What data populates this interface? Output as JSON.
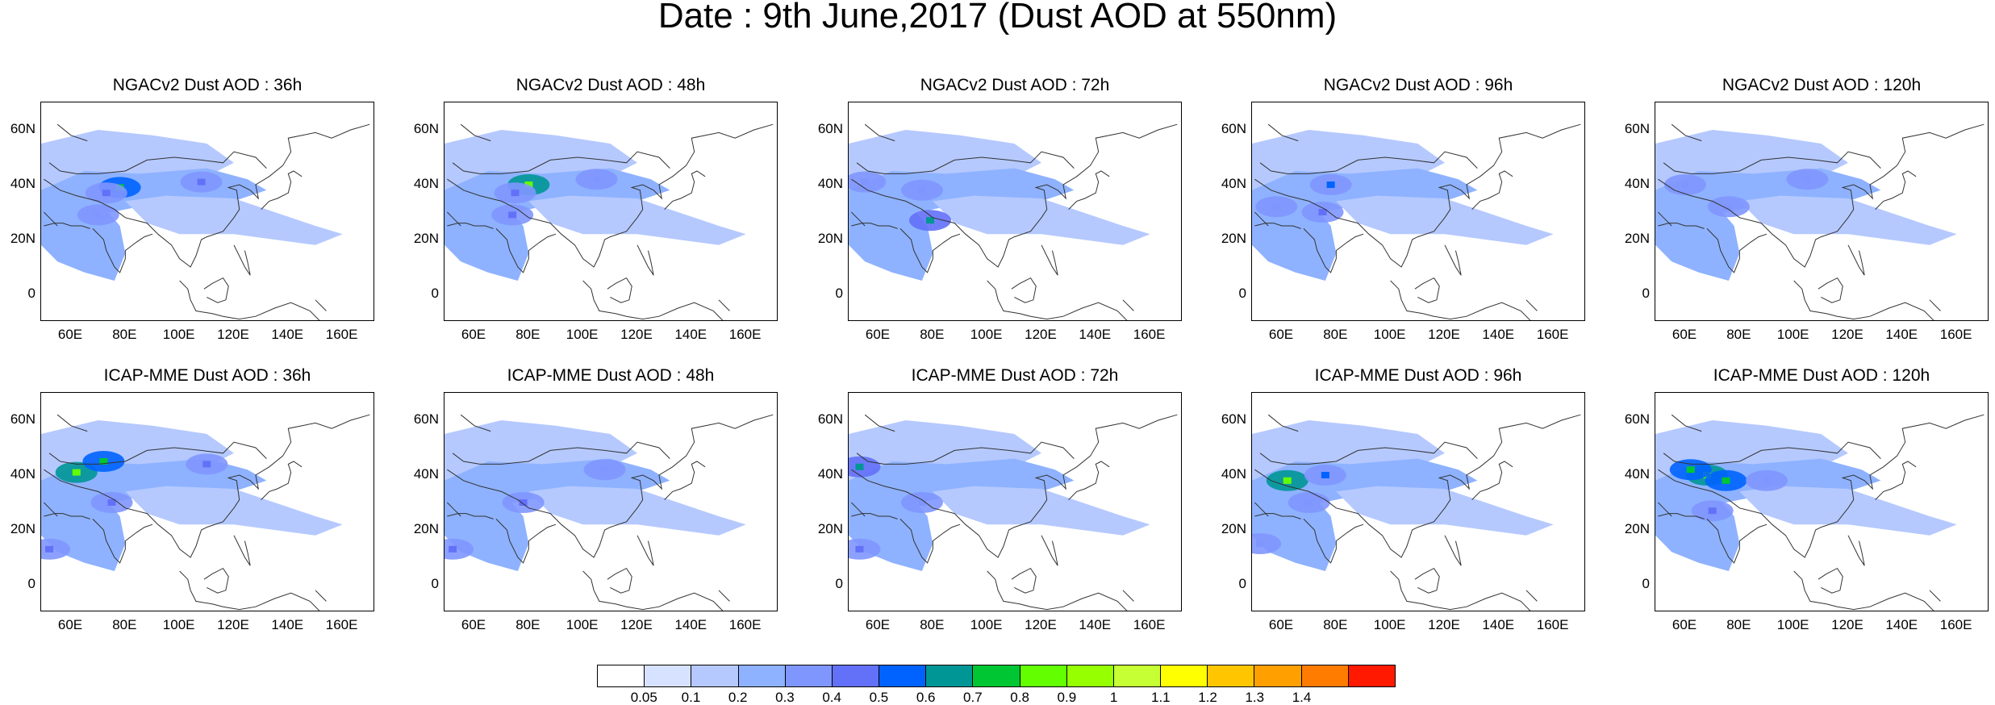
{
  "title": "Date : 9th June,2017 (Dust AOD at 550nm)",
  "rows": [
    {
      "model": "NGACv2",
      "panels": [
        {
          "title": "NGACv2 Dust AOD : 36h",
          "hotspots": [
            {
              "lon": 78,
              "lat": 39,
              "level": 0.7
            },
            {
              "lon": 73,
              "lat": 37,
              "level": 0.4
            },
            {
              "lon": 108,
              "lat": 41,
              "level": 0.4
            },
            {
              "lon": 70,
              "lat": 29,
              "level": 0.35
            }
          ]
        },
        {
          "title": "NGACv2 Dust AOD : 48h",
          "hotspots": [
            {
              "lon": 80,
              "lat": 40,
              "level": 0.8
            },
            {
              "lon": 75,
              "lat": 37,
              "level": 0.45
            },
            {
              "lon": 74,
              "lat": 29,
              "level": 0.4
            },
            {
              "lon": 105,
              "lat": 42,
              "level": 0.35
            }
          ]
        },
        {
          "title": "NGACv2 Dust AOD : 72h",
          "hotspots": [
            {
              "lon": 79,
              "lat": 27,
              "level": 0.6
            },
            {
              "lon": 55,
              "lat": 41,
              "level": 0.35
            },
            {
              "lon": 76,
              "lat": 38,
              "level": 0.35
            }
          ]
        },
        {
          "title": "NGACv2 Dust AOD : 96h",
          "hotspots": [
            {
              "lon": 78,
              "lat": 40,
              "level": 0.5
            },
            {
              "lon": 75,
              "lat": 30,
              "level": 0.4
            },
            {
              "lon": 58,
              "lat": 32,
              "level": 0.35
            }
          ]
        },
        {
          "title": "NGACv2 Dust AOD : 120h",
          "hotspots": [
            {
              "lon": 76,
              "lat": 32,
              "level": 0.35
            },
            {
              "lon": 60,
              "lat": 40,
              "level": 0.3
            },
            {
              "lon": 105,
              "lat": 42,
              "level": 0.3
            }
          ]
        }
      ]
    },
    {
      "model": "ICAP-MME",
      "panels": [
        {
          "title": "ICAP-MME Dust AOD : 36h",
          "hotspots": [
            {
              "lon": 62,
              "lat": 41,
              "level": 0.8
            },
            {
              "lon": 72,
              "lat": 45,
              "level": 0.7
            },
            {
              "lon": 110,
              "lat": 44,
              "level": 0.45
            },
            {
              "lon": 75,
              "lat": 30,
              "level": 0.4
            },
            {
              "lon": 52,
              "lat": 13,
              "level": 0.4
            }
          ]
        },
        {
          "title": "ICAP-MME Dust AOD : 48h",
          "hotspots": [
            {
              "lon": 78,
              "lat": 30,
              "level": 0.4
            },
            {
              "lon": 108,
              "lat": 42,
              "level": 0.35
            },
            {
              "lon": 52,
              "lat": 13,
              "level": 0.4
            }
          ]
        },
        {
          "title": "ICAP-MME Dust AOD : 72h",
          "hotspots": [
            {
              "lon": 53,
              "lat": 43,
              "level": 0.6
            },
            {
              "lon": 53,
              "lat": 13,
              "level": 0.4
            },
            {
              "lon": 76,
              "lat": 30,
              "level": 0.35
            }
          ]
        },
        {
          "title": "ICAP-MME Dust AOD : 96h",
          "hotspots": [
            {
              "lon": 62,
              "lat": 38,
              "level": 0.8
            },
            {
              "lon": 76,
              "lat": 40,
              "level": 0.5
            },
            {
              "lon": 70,
              "lat": 30,
              "level": 0.35
            },
            {
              "lon": 52,
              "lat": 15,
              "level": 0.35
            }
          ]
        },
        {
          "title": "ICAP-MME Dust AOD : 120h",
          "hotspots": [
            {
              "lon": 68,
              "lat": 40,
              "level": 0.8
            },
            {
              "lon": 62,
              "lat": 42,
              "level": 0.7
            },
            {
              "lon": 75,
              "lat": 38,
              "level": 0.7
            },
            {
              "lon": 70,
              "lat": 27,
              "level": 0.4
            },
            {
              "lon": 90,
              "lat": 38,
              "level": 0.35
            }
          ]
        }
      ]
    }
  ],
  "axes": {
    "lon_range": [
      49,
      172
    ],
    "lat_range": [
      -10,
      70
    ],
    "lon_ticks": [
      "60E",
      "80E",
      "100E",
      "120E",
      "140E",
      "160E"
    ],
    "lat_ticks": [
      "0",
      "20N",
      "40N",
      "60N"
    ]
  },
  "colorbar": {
    "labels": [
      "0.05",
      "0.1",
      "0.2",
      "0.3",
      "0.4",
      "0.5",
      "0.6",
      "0.7",
      "0.8",
      "0.9",
      "1",
      "1.1",
      "1.2",
      "1.3",
      "1.4"
    ],
    "colors": [
      "#ffffff",
      "#d6e2ff",
      "#b5c9ff",
      "#8eb2ff",
      "#7f96ff",
      "#6370f8",
      "#0063ff",
      "#009696",
      "#00c633",
      "#63ff00",
      "#96ff00",
      "#c6ff33",
      "#ffff00",
      "#ffc600",
      "#ffa000",
      "#ff7c00",
      "#ff1900"
    ]
  }
}
